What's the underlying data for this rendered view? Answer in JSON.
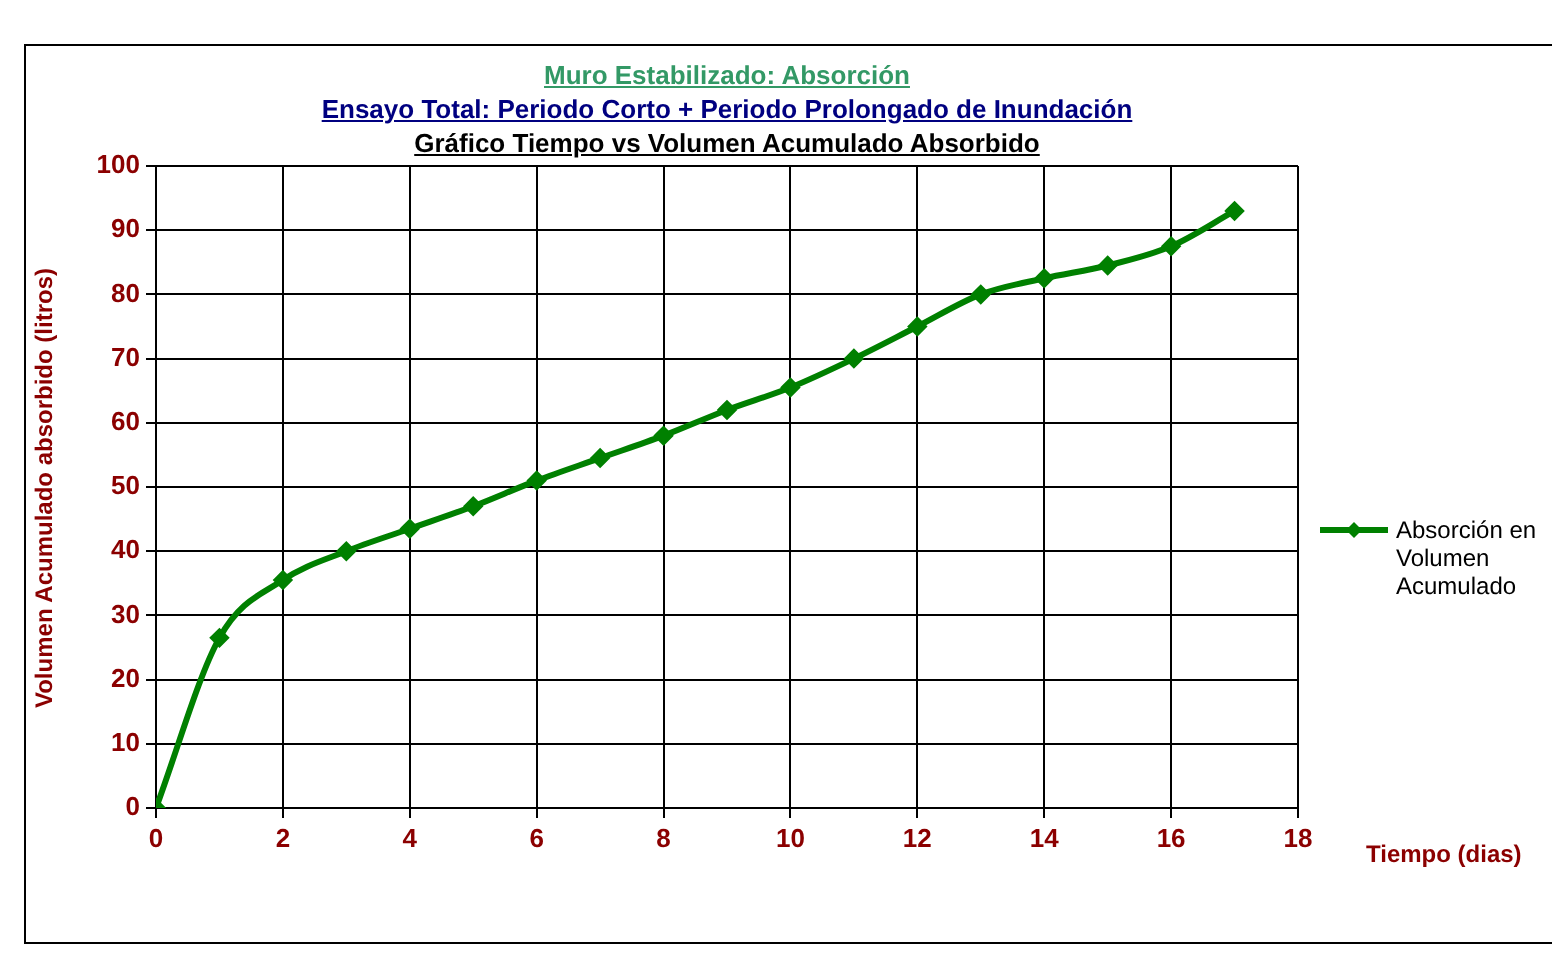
{
  "chart_data": {
    "type": "line",
    "title": "Muro Estabilizado: Absorción",
    "subtitle": "Ensayo Total: Periodo Corto + Periodo Prolongado de Inundación",
    "annotations": [
      "Gráfico Tiempo vs Volumen Acumulado Absorbido"
    ],
    "xlabel": "Tiempo (dias)",
    "ylabel": "Volumen Acumulado absorbido (litros)",
    "x": [
      0,
      1,
      2,
      3,
      4,
      5,
      6,
      7,
      8,
      9,
      10,
      11,
      12,
      13,
      14,
      15,
      16,
      17
    ],
    "series": [
      {
        "name": "Absorción en Volumen Acumulado",
        "color": "#008000",
        "values": [
          0,
          26.5,
          35.5,
          40,
          43.5,
          47,
          51,
          54.5,
          58,
          62,
          65.5,
          70,
          75,
          80,
          82.5,
          84.5,
          87.5,
          93
        ]
      }
    ],
    "xlim": [
      0,
      18
    ],
    "xticks": [
      0,
      2,
      4,
      6,
      8,
      10,
      12,
      14,
      16,
      18
    ],
    "ylim": [
      0,
      100
    ],
    "yticks": [
      0,
      10,
      20,
      30,
      40,
      50,
      60,
      70,
      80,
      90,
      100
    ],
    "grid": true,
    "legend": "right",
    "marker": "diamond",
    "line_style": "solid"
  }
}
